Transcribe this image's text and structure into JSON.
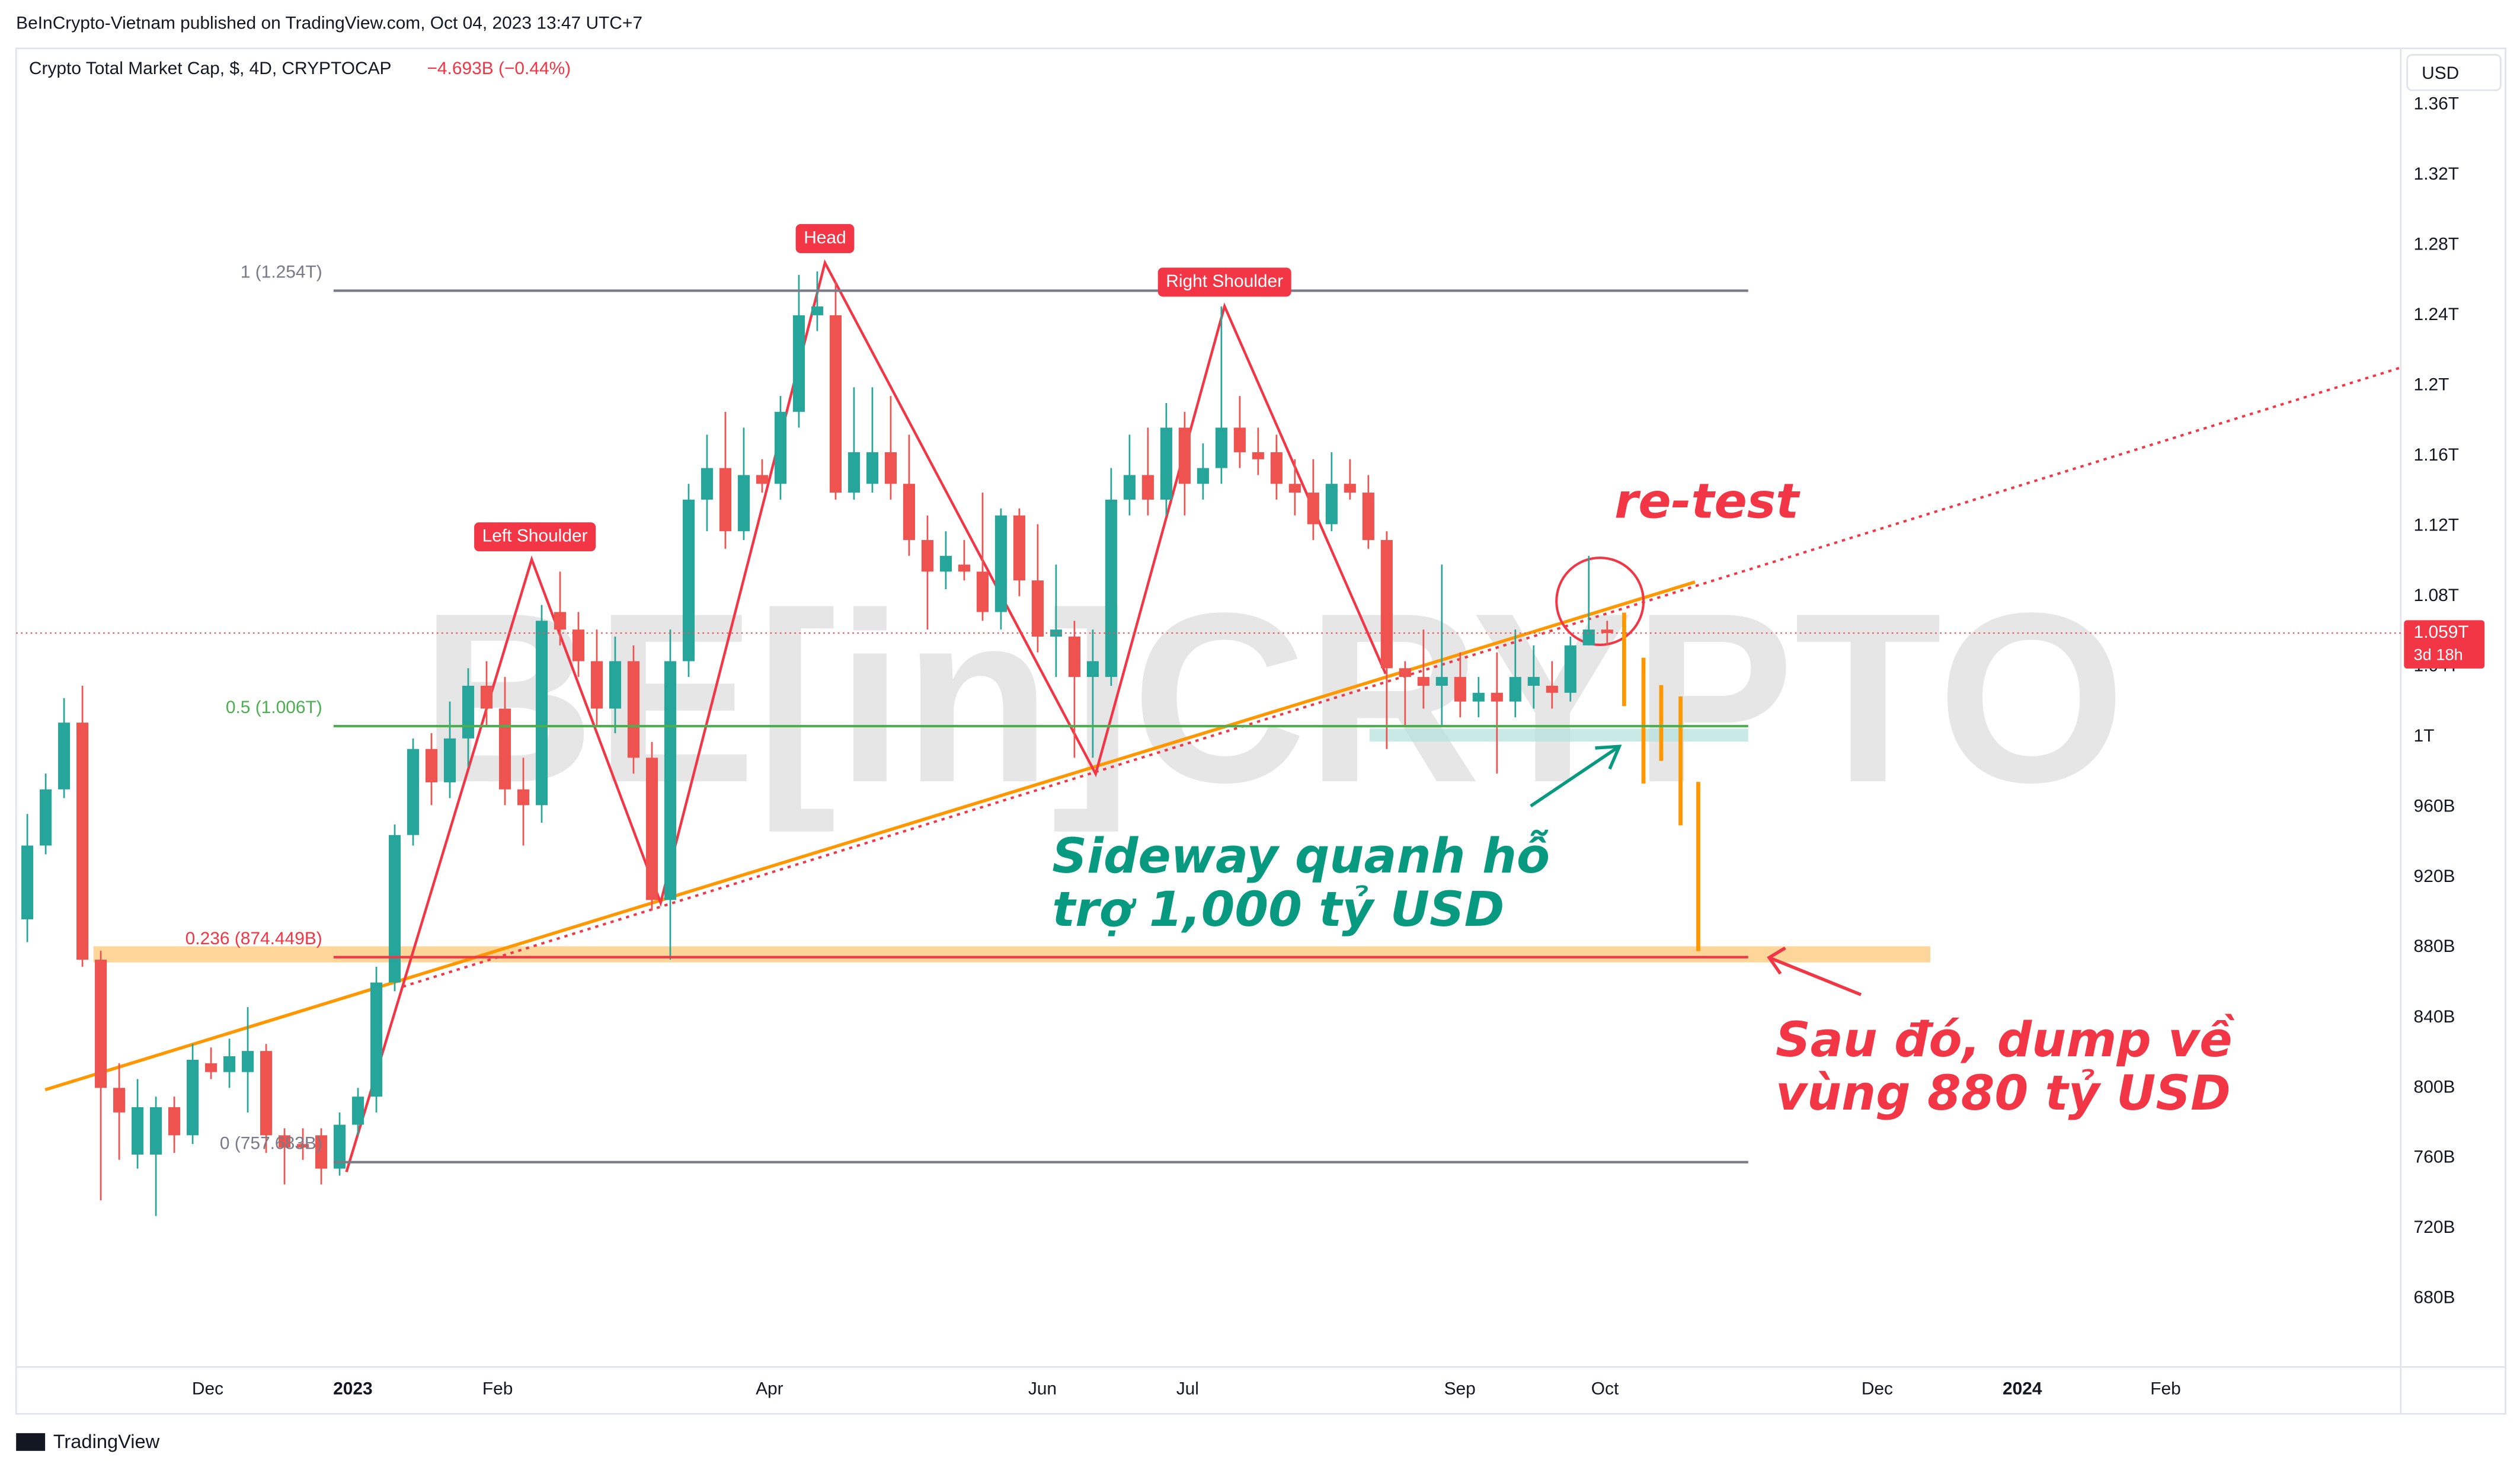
{
  "chart_data": {
    "type": "candlestick",
    "header": "BeInCrypto-Vietnam published on TradingView.com, Oct 04, 2023 13:47 UTC+7",
    "title": "Crypto Total Market Cap, $, 4D, CRYPTOCAP",
    "change": "−4.693B (−0.44%)",
    "currency": "USD",
    "watermark": "BE[in]CRYPTO",
    "footer": "TradingView",
    "up_color": "#26a69a",
    "down_color": "#ef5350",
    "grid": false,
    "xlim": [
      -0.61,
      129.2
    ],
    "xticks": [
      {
        "value": 9.82,
        "label": "Dec"
      },
      {
        "value": 17.72,
        "label": "2023"
      },
      {
        "value": 25.6,
        "label": "Feb"
      },
      {
        "value": 40.4,
        "label": "Apr"
      },
      {
        "value": 55.26,
        "label": "Jun"
      },
      {
        "value": 63.16,
        "label": "Jul"
      },
      {
        "value": 77.98,
        "label": "Sep"
      },
      {
        "value": 85.88,
        "label": "Oct"
      },
      {
        "value": 100.7,
        "label": "Dec"
      },
      {
        "value": 108.6,
        "label": "2024"
      },
      {
        "value": 116.4,
        "label": "Feb"
      }
    ],
    "ylim": [
      641,
      1392
    ],
    "yticks": [
      {
        "value": 680,
        "label": "680B"
      },
      {
        "value": 720,
        "label": "720B"
      },
      {
        "value": 760,
        "label": "760B"
      },
      {
        "value": 800,
        "label": "800B"
      },
      {
        "value": 840,
        "label": "840B"
      },
      {
        "value": 880,
        "label": "880B"
      },
      {
        "value": 920,
        "label": "920B"
      },
      {
        "value": 960,
        "label": "960B"
      },
      {
        "value": 1000,
        "label": "1T"
      },
      {
        "value": 1040,
        "label": "1.04T"
      },
      {
        "value": 1080,
        "label": "1.08T"
      },
      {
        "value": 1120,
        "label": "1.12T"
      },
      {
        "value": 1160,
        "label": "1.16T"
      },
      {
        "value": 1200,
        "label": "1.2T"
      },
      {
        "value": 1240,
        "label": "1.24T"
      },
      {
        "value": 1280,
        "label": "1.28T"
      },
      {
        "value": 1320,
        "label": "1.32T"
      },
      {
        "value": 1360,
        "label": "1.36T"
      }
    ],
    "last_price": {
      "value": 1059,
      "label": "1.059T"
    },
    "countdown": "3d 18h",
    "candles": {
      "x": [
        0,
        1,
        2,
        3,
        4,
        5,
        6,
        7,
        8,
        9,
        10,
        11,
        12,
        13,
        14,
        15,
        16,
        17,
        18,
        19,
        20,
        21,
        22,
        23,
        24,
        25,
        26,
        27,
        28,
        29,
        30,
        31,
        32,
        33,
        34,
        35,
        36,
        37,
        38,
        39,
        40,
        41,
        42,
        43,
        44,
        45,
        46,
        47,
        48,
        49,
        50,
        51,
        52,
        53,
        54,
        55,
        56,
        57,
        58,
        59,
        60,
        61,
        62,
        63,
        64,
        65,
        66,
        67,
        68,
        69,
        70,
        71,
        72,
        73,
        74,
        75,
        76,
        77,
        78,
        79,
        80,
        81,
        82,
        83,
        84,
        85,
        86
      ],
      "open": [
        896,
        938,
        970,
        1008,
        873,
        800,
        762,
        762,
        789,
        773,
        814,
        809,
        809,
        821,
        773,
        768,
        773,
        754,
        779,
        795,
        860,
        944,
        993,
        974,
        999,
        1029,
        1016,
        970,
        961,
        1071,
        1061,
        1043,
        1016,
        1043,
        988,
        907,
        1043,
        1135,
        1153,
        1117,
        1149,
        1144,
        1185,
        1240,
        1240,
        1139,
        1144,
        1162,
        1144,
        1112,
        1094,
        1098,
        1094,
        1071,
        1126,
        1089,
        1057,
        1057,
        1034,
        1034,
        1135,
        1149,
        1135,
        1176,
        1144,
        1153,
        1176,
        1162,
        1162,
        1144,
        1139,
        1121,
        1144,
        1139,
        1112,
        1039,
        1034,
        1029,
        1034,
        1020,
        1025,
        1020,
        1029,
        1029,
        1025,
        1052,
        1061
      ],
      "high": [
        956,
        979,
        1022,
        1029,
        878,
        814,
        805,
        795,
        795,
        825,
        823,
        828,
        846,
        825,
        777,
        777,
        777,
        786,
        800,
        869,
        950,
        999,
        1002,
        1020,
        1039,
        1043,
        1034,
        988,
        1075,
        1094,
        1071,
        1061,
        1057,
        1052,
        997,
        1061,
        1144,
        1172,
        1185,
        1176,
        1158,
        1194,
        1263,
        1265,
        1259,
        1199,
        1199,
        1194,
        1172,
        1126,
        1117,
        1112,
        1139,
        1130,
        1130,
        1121,
        1098,
        1066,
        1061,
        1153,
        1172,
        1176,
        1190,
        1185,
        1167,
        1245,
        1194,
        1176,
        1172,
        1158,
        1158,
        1162,
        1158,
        1149,
        1117,
        1043,
        1061,
        1098,
        1048,
        1034,
        1048,
        1061,
        1052,
        1043,
        1057,
        1103,
        1066
      ],
      "low": [
        883,
        933,
        965,
        869,
        736,
        759,
        754,
        727,
        763,
        768,
        805,
        800,
        786,
        763,
        745,
        759,
        745,
        750,
        773,
        786,
        855,
        938,
        961,
        965,
        983,
        1006,
        961,
        938,
        951,
        1052,
        1034,
        1006,
        1002,
        979,
        901,
        873,
        1034,
        1117,
        1107,
        1112,
        1139,
        1135,
        1176,
        1231,
        1135,
        1135,
        1139,
        1135,
        1103,
        1061,
        1084,
        1089,
        1066,
        1061,
        1080,
        1048,
        1034,
        988,
        988,
        1029,
        1126,
        1126,
        1126,
        1126,
        1135,
        1144,
        1153,
        1149,
        1135,
        1126,
        1112,
        1117,
        1135,
        1107,
        993,
        1006,
        1016,
        1006,
        1011,
        1011,
        979,
        1011,
        1016,
        1016,
        1020,
        1052,
        1052
      ],
      "close": [
        938,
        970,
        1008,
        873,
        800,
        786,
        789,
        789,
        773,
        816,
        809,
        818,
        821,
        773,
        766,
        766,
        754,
        779,
        795,
        860,
        944,
        993,
        974,
        999,
        1029,
        1016,
        970,
        961,
        1066,
        1061,
        1043,
        1016,
        1043,
        988,
        907,
        1043,
        1135,
        1153,
        1117,
        1149,
        1144,
        1185,
        1240,
        1245,
        1139,
        1162,
        1162,
        1144,
        1112,
        1094,
        1103,
        1094,
        1071,
        1126,
        1089,
        1057,
        1061,
        1034,
        1043,
        1135,
        1149,
        1135,
        1176,
        1144,
        1153,
        1176,
        1162,
        1158,
        1144,
        1139,
        1121,
        1144,
        1139,
        1112,
        1039,
        1034,
        1029,
        1034,
        1020,
        1025,
        1020,
        1034,
        1034,
        1025,
        1052,
        1061,
        1059
      ]
    },
    "fib_levels": [
      {
        "label": "1 (1.254T)",
        "value": 1254,
        "color": "#787b86"
      },
      {
        "label": "0.5 (1.006T)",
        "value": 1006,
        "color": "#4caf50"
      },
      {
        "label": "0.236 (874.449B)",
        "value": 874.449,
        "color": "#f23645"
      },
      {
        "label": "0 (757.683B)",
        "value": 757.683,
        "color": "#787b86"
      }
    ],
    "pattern_labels": [
      "Left Shoulder",
      "Head",
      "Right Shoulder"
    ],
    "retest_note": "re-test",
    "sideway_note": [
      "Sideway quanh hỗ",
      "trợ 1,000 tỷ USD"
    ],
    "dump_note": [
      "Sau đó, dump về",
      "vùng 880 tỷ USD"
    ]
  }
}
